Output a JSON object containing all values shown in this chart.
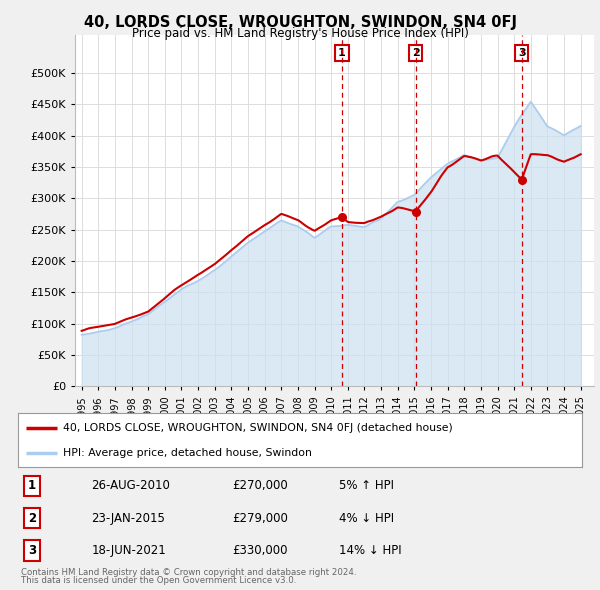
{
  "title": "40, LORDS CLOSE, WROUGHTON, SWINDON, SN4 0FJ",
  "subtitle": "Price paid vs. HM Land Registry's House Price Index (HPI)",
  "ylim": [
    0,
    560000
  ],
  "yticks": [
    0,
    50000,
    100000,
    150000,
    200000,
    250000,
    300000,
    350000,
    400000,
    450000,
    500000
  ],
  "xlim_start": 1994.6,
  "xlim_end": 2025.8,
  "sale_dates": [
    2010.65,
    2015.07,
    2021.46
  ],
  "sale_prices": [
    270000,
    279000,
    330000
  ],
  "sale_labels": [
    "1",
    "2",
    "3"
  ],
  "sale_info": [
    {
      "label": "1",
      "date": "26-AUG-2010",
      "price": "£270,000",
      "hpi": "5% ↑ HPI"
    },
    {
      "label": "2",
      "date": "23-JAN-2015",
      "price": "£279,000",
      "hpi": "4% ↓ HPI"
    },
    {
      "label": "3",
      "date": "18-JUN-2021",
      "price": "£330,000",
      "hpi": "14% ↓ HPI"
    }
  ],
  "legend_line1": "40, LORDS CLOSE, WROUGHTON, SWINDON, SN4 0FJ (detached house)",
  "legend_line2": "HPI: Average price, detached house, Swindon",
  "footer1": "Contains HM Land Registry data © Crown copyright and database right 2024.",
  "footer2": "This data is licensed under the Open Government Licence v3.0.",
  "line_color_red": "#cc0000",
  "line_color_blue": "#aaccee",
  "fill_color_blue": "#cce0f0",
  "background_color": "#f0f0f0",
  "plot_bg_color": "#ffffff",
  "grid_color": "#dddddd",
  "vline_color": "#cc0000",
  "marker_color": "#cc0000",
  "hpi_keypoints_x": [
    1995,
    1997,
    1999,
    2001,
    2003,
    2005,
    2007,
    2008,
    2009,
    2010,
    2011,
    2012,
    2013,
    2014,
    2015,
    2016,
    2017,
    2018,
    2019,
    2020,
    2021,
    2022,
    2023,
    2024,
    2025
  ],
  "hpi_keypoints_y": [
    82000,
    93000,
    115000,
    155000,
    185000,
    230000,
    265000,
    255000,
    238000,
    255000,
    258000,
    255000,
    268000,
    295000,
    305000,
    335000,
    355000,
    370000,
    360000,
    365000,
    415000,
    455000,
    415000,
    400000,
    415000
  ],
  "prop_keypoints_x": [
    1995,
    1997,
    1999,
    2001,
    2003,
    2005,
    2007,
    2008,
    2009,
    2010,
    2010.65,
    2011,
    2012,
    2013,
    2014,
    2015.07,
    2016,
    2017,
    2018,
    2019,
    2020,
    2021.46,
    2022,
    2023,
    2024,
    2025
  ],
  "prop_keypoints_y": [
    90000,
    100000,
    120000,
    162000,
    195000,
    240000,
    275000,
    265000,
    248000,
    265000,
    270000,
    262000,
    260000,
    270000,
    285000,
    279000,
    310000,
    350000,
    368000,
    362000,
    368000,
    330000,
    370000,
    370000,
    358000,
    370000
  ]
}
